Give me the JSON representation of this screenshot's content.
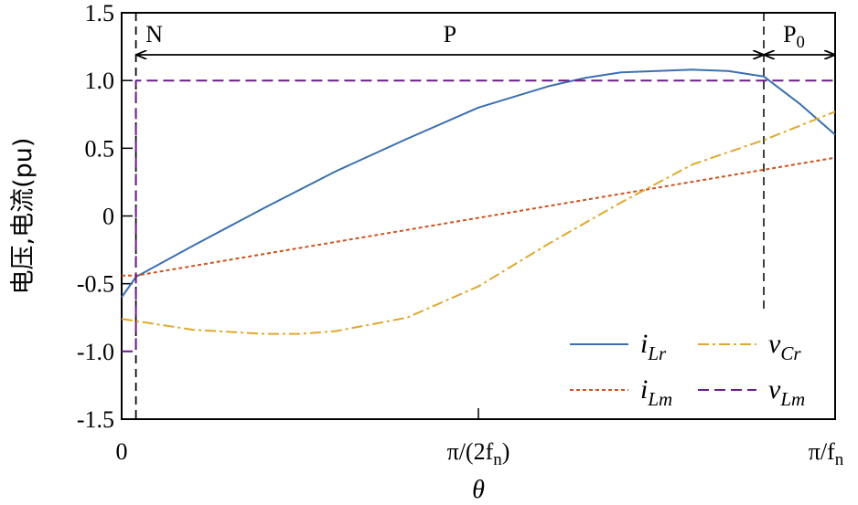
{
  "chart_data": {
    "type": "line",
    "xlabel": "θ",
    "ylabel": "电压,电流(pu)",
    "xlim": [
      0,
      1
    ],
    "ylim": [
      -1.5,
      1.5
    ],
    "x_ticks": [
      {
        "v": 0,
        "label": "0"
      },
      {
        "v": 0.5,
        "label": "π/(2f",
        "sub": "n",
        ")": ")"
      },
      {
        "v": 1,
        "label": "π/f",
        "sub": "n"
      }
    ],
    "y_ticks": [
      {
        "v": 1.5,
        "label": "1.5"
      },
      {
        "v": 1.0,
        "label": "1.0"
      },
      {
        "v": 0.5,
        "label": "0.5"
      },
      {
        "v": 0,
        "label": "0"
      },
      {
        "v": -0.5,
        "label": "-0.5"
      },
      {
        "v": -1.0,
        "label": "-1.0"
      },
      {
        "v": -1.5,
        "label": "-1.5"
      }
    ],
    "grid": false,
    "legend_position": "bottom-right",
    "intervals": [
      {
        "label": "N",
        "sub": "",
        "from": 0,
        "to": 0.02
      },
      {
        "label": "P",
        "sub": "",
        "from": 0.02,
        "to": 0.9
      },
      {
        "label": "P",
        "sub": "0",
        "from": 0.9,
        "to": 1
      }
    ],
    "series": [
      {
        "name": "i",
        "sub": "Lr",
        "color": "#3b6fb0",
        "dash": "",
        "x": [
          0,
          0.02,
          0.1,
          0.2,
          0.3,
          0.4,
          0.5,
          0.6,
          0.65,
          0.7,
          0.8,
          0.85,
          0.9,
          0.95,
          1.0
        ],
        "y": [
          -0.6,
          -0.45,
          -0.22,
          0.06,
          0.33,
          0.57,
          0.8,
          0.96,
          1.02,
          1.06,
          1.08,
          1.07,
          1.03,
          0.83,
          0.6
        ]
      },
      {
        "name": "i",
        "sub": "Lm",
        "color": "#d0521e",
        "dash": "4,3",
        "x": [
          0,
          0.02,
          1.0
        ],
        "y": [
          -0.44,
          -0.44,
          0.43
        ]
      },
      {
        "name": "v",
        "sub": "Cr",
        "color": "#e0a82e",
        "dash": "12,4,3,4",
        "x": [
          0,
          0.1,
          0.2,
          0.25,
          0.3,
          0.4,
          0.5,
          0.6,
          0.7,
          0.8,
          0.9,
          1.0
        ],
        "y": [
          -0.76,
          -0.84,
          -0.87,
          -0.87,
          -0.85,
          -0.75,
          -0.52,
          -0.2,
          0.1,
          0.38,
          0.56,
          0.77
        ]
      },
      {
        "name": "v",
        "sub": "Lm",
        "color": "#6a1b8a",
        "dash": "12,6",
        "x": [
          0,
          0.02,
          0.02,
          1.0
        ],
        "y": [
          -1.0,
          -1.0,
          1.0,
          1.0
        ]
      }
    ]
  }
}
